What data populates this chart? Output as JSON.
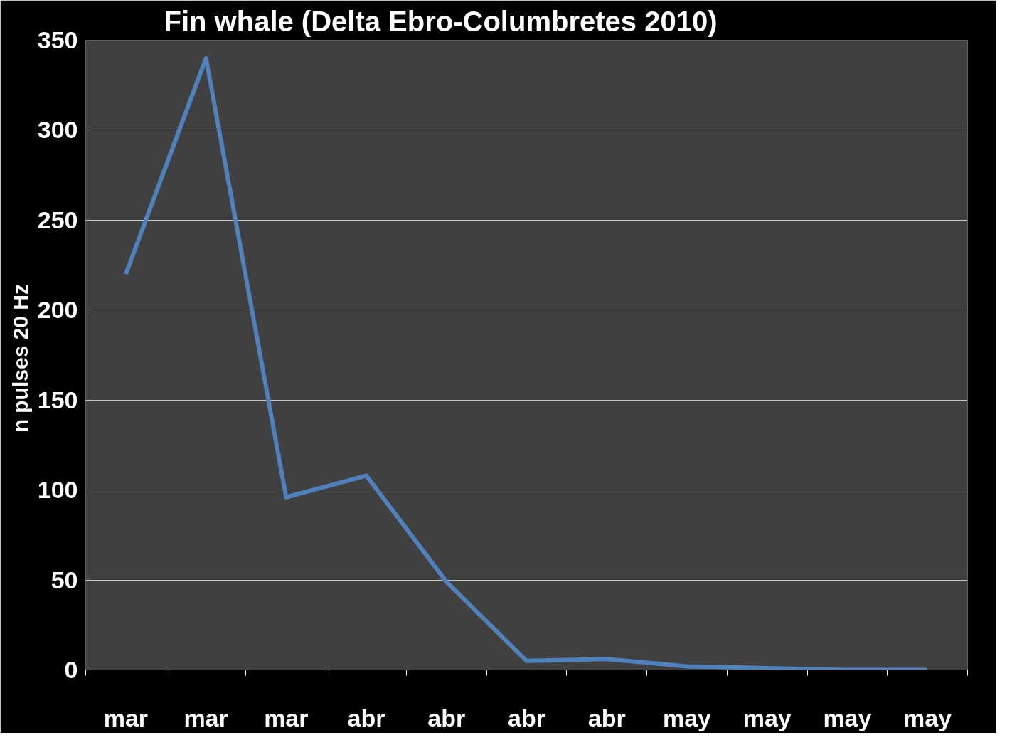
{
  "chart_data": {
    "type": "line",
    "title": "Fin whale (Delta Ebro-Columbretes  2010)",
    "ylabel": "n pulses  20 Hz",
    "categories": [
      "mar",
      "mar",
      "mar",
      "abr",
      "abr",
      "abr",
      "abr",
      "may",
      "may",
      "may",
      "may"
    ],
    "series": [
      {
        "color": "#4f81bd",
        "values": [
          220,
          340,
          96,
          108,
          49,
          5,
          6,
          2,
          1,
          0,
          0
        ]
      }
    ],
    "ylim": [
      0,
      350
    ],
    "yticks": [
      0,
      50,
      100,
      150,
      200,
      250,
      300,
      350
    ],
    "grid": "y",
    "line_style": "solid",
    "marker": "none"
  }
}
